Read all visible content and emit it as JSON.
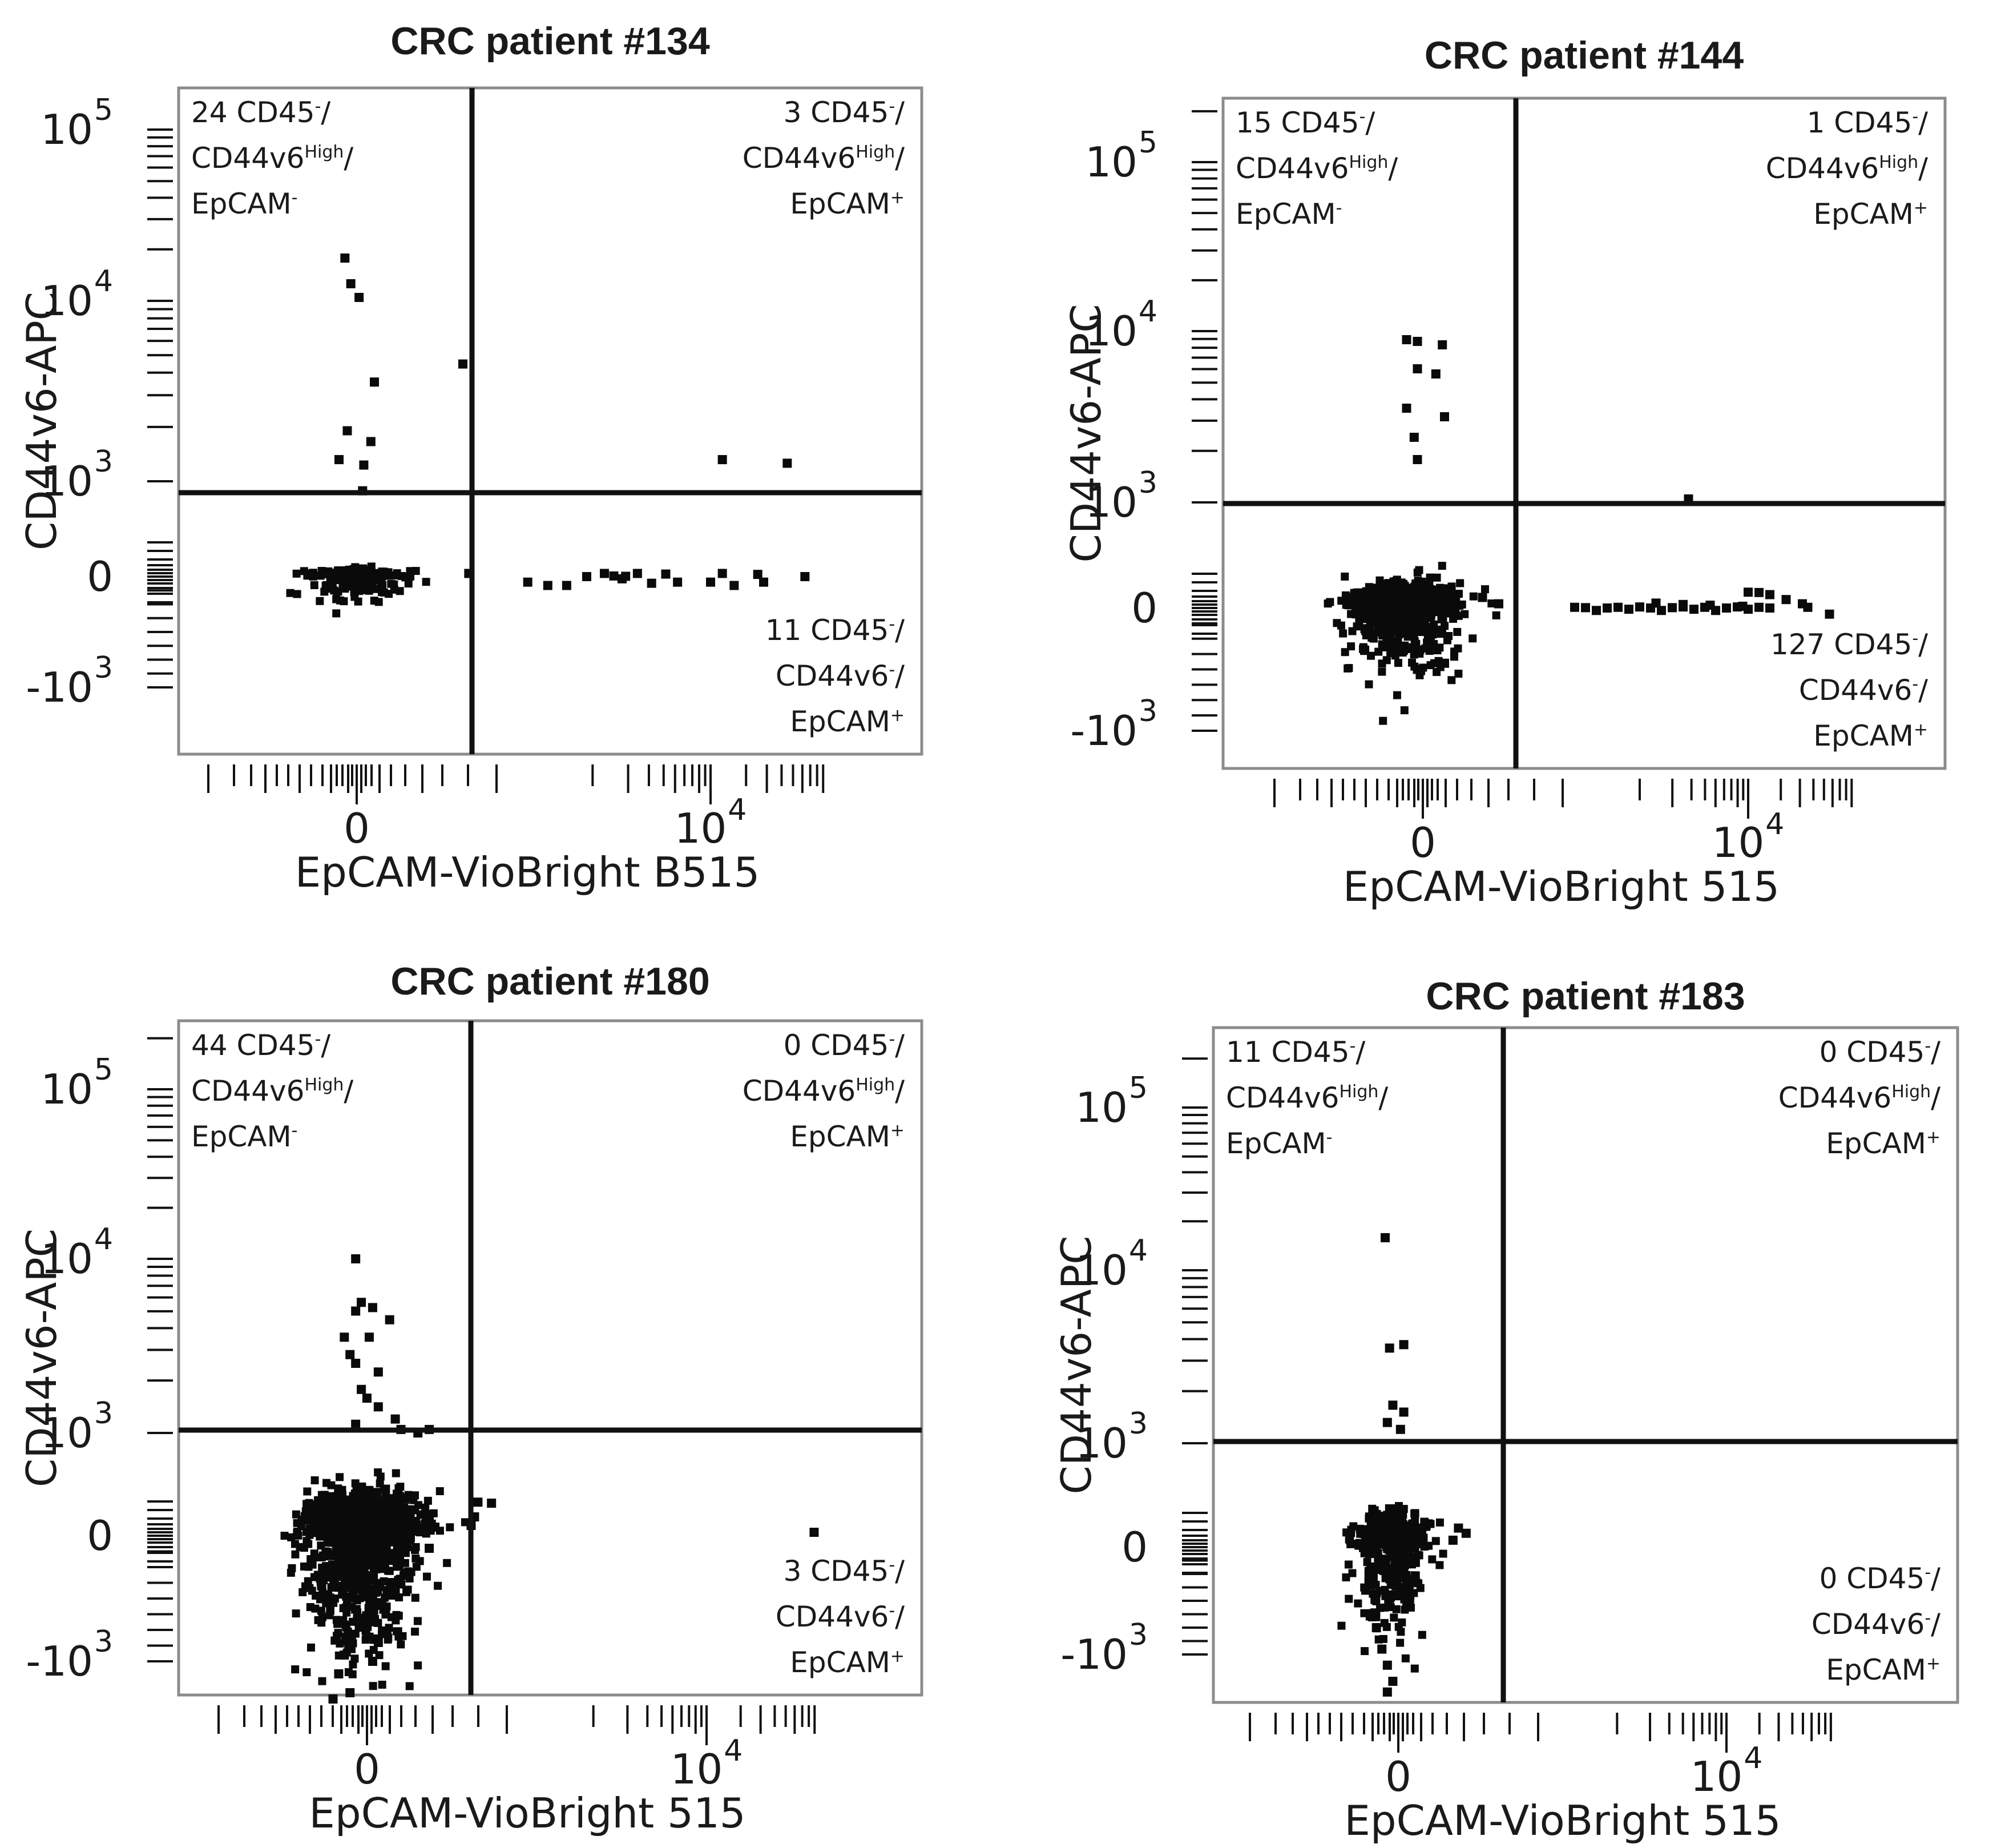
{
  "colors": {
    "dots": "#0a0a0a",
    "frame": "#8c8c8c",
    "gate": "#111111",
    "text": "#1a1a1a"
  },
  "chart_data": [
    {
      "type": "scatter",
      "title": "CRC patient #134",
      "xlabel": "EpCAM-VioBright B515",
      "ylabel": "CD44v6-APC",
      "xscale": "biexponential",
      "yscale": "biexponential",
      "x_tick_labels": [
        {
          "base": "0",
          "exp": ""
        },
        {
          "base": "10",
          "exp": "4"
        }
      ],
      "y_tick_labels": [
        {
          "base": "10",
          "exp": "5"
        },
        {
          "base": "10",
          "exp": "4"
        },
        {
          "base": "10",
          "exp": "3"
        },
        {
          "base": "0",
          "exp": ""
        },
        {
          "base": "-10",
          "exp": "3"
        }
      ],
      "quadrants": {
        "upper_left": {
          "count": "24",
          "lines": [
            [
              "CD45",
              "-",
              "/"
            ],
            [
              "CD44v6",
              "High",
              "/"
            ],
            [
              "EpCAM",
              "-",
              ""
            ]
          ]
        },
        "upper_right": {
          "count": "3",
          "lines": [
            [
              "CD45",
              "-",
              "/"
            ],
            [
              "CD44v6",
              "High",
              "/"
            ],
            [
              "EpCAM",
              "+",
              ""
            ]
          ]
        },
        "lower_right": {
          "count": "11",
          "lines": [
            [
              "CD45",
              "-",
              "/"
            ],
            [
              "CD44v6",
              "-",
              "/"
            ],
            [
              "EpCAM",
              "+",
              ""
            ]
          ]
        }
      },
      "points": [
        [
          -0.1,
          4.25
        ],
        [
          -0.05,
          4.1
        ],
        [
          0.02,
          4.02
        ],
        [
          0.15,
          3.55
        ],
        [
          -0.08,
          3.28
        ],
        [
          0.12,
          3.22
        ],
        [
          -0.15,
          3.12
        ],
        [
          0.06,
          3.09
        ],
        [
          0.05,
          2.7
        ],
        [
          0.9,
          3.65
        ],
        [
          3.1,
          3.12
        ],
        [
          3.65,
          3.1
        ],
        [
          0.95,
          0.1
        ],
        [
          1.45,
          -0.05
        ],
        [
          1.62,
          -0.08
        ],
        [
          1.78,
          -0.08
        ],
        [
          1.95,
          0.0
        ],
        [
          2.1,
          0.1
        ],
        [
          2.18,
          0.02
        ],
        [
          2.25,
          -0.02
        ],
        [
          2.28,
          0.01
        ],
        [
          2.38,
          0.1
        ],
        [
          2.5,
          -0.06
        ],
        [
          2.62,
          0.08
        ],
        [
          2.72,
          -0.05
        ],
        [
          3.0,
          -0.05
        ],
        [
          3.1,
          0.1
        ],
        [
          3.2,
          -0.08
        ],
        [
          3.4,
          0.07
        ],
        [
          3.45,
          -0.05
        ],
        [
          3.8,
          0.0
        ],
        [
          -0.06,
          0.2
        ],
        [
          0.05,
          0.24
        ],
        [
          -0.15,
          0.18
        ]
      ],
      "cluster": {
        "cx": 0.0,
        "cy": 0.0,
        "sx": 0.2,
        "sy": 0.09,
        "n": 190
      }
    },
    {
      "type": "scatter",
      "title": "CRC patient #144",
      "xlabel": "EpCAM-VioBright 515",
      "ylabel": "CD44v6-APC",
      "xscale": "biexponential",
      "yscale": "biexponential",
      "x_tick_labels": [
        {
          "base": "0",
          "exp": ""
        },
        {
          "base": "10",
          "exp": "4"
        }
      ],
      "y_tick_labels": [
        {
          "base": "10",
          "exp": "5"
        },
        {
          "base": "10",
          "exp": "4"
        },
        {
          "base": "10",
          "exp": "3"
        },
        {
          "base": "0",
          "exp": ""
        },
        {
          "base": "-10",
          "exp": "3"
        }
      ],
      "quadrants": {
        "upper_left": {
          "count": "15",
          "lines": [
            [
              "CD45",
              "-",
              "/"
            ],
            [
              "CD44v6",
              "High",
              "/"
            ],
            [
              "EpCAM",
              "-",
              ""
            ]
          ]
        },
        "upper_right": {
          "count": "1",
          "lines": [
            [
              "CD45",
              "-",
              "/"
            ],
            [
              "CD44v6",
              "High",
              "/"
            ],
            [
              "EpCAM",
              "+",
              ""
            ]
          ]
        },
        "lower_right": {
          "count": "127",
          "lines": [
            [
              "CD45",
              "-",
              "/"
            ],
            [
              "CD44v6",
              "-",
              "/"
            ],
            [
              "EpCAM",
              "+",
              ""
            ]
          ]
        }
      },
      "points": [
        [
          -0.15,
          3.95
        ],
        [
          -0.05,
          3.94
        ],
        [
          0.18,
          3.92
        ],
        [
          -0.05,
          3.78
        ],
        [
          0.12,
          3.75
        ],
        [
          -0.15,
          3.55
        ],
        [
          0.2,
          3.5
        ],
        [
          -0.08,
          3.38
        ],
        [
          -0.05,
          3.25
        ],
        [
          2.45,
          3.02
        ],
        [
          1.4,
          0.02
        ],
        [
          1.5,
          0.01
        ],
        [
          1.6,
          -0.02
        ],
        [
          1.7,
          0.0
        ],
        [
          1.8,
          0.02
        ],
        [
          1.9,
          -0.01
        ],
        [
          2.0,
          0.03
        ],
        [
          2.1,
          0.0
        ],
        [
          2.2,
          -0.02
        ],
        [
          2.3,
          0.01
        ],
        [
          2.4,
          0.03
        ],
        [
          2.5,
          -0.01
        ],
        [
          2.6,
          0.02
        ],
        [
          2.7,
          -0.02
        ],
        [
          2.8,
          0.0
        ],
        [
          2.9,
          0.03
        ],
        [
          3.0,
          -0.01
        ],
        [
          3.1,
          0.02
        ],
        [
          3.2,
          0.0
        ],
        [
          2.15,
          0.14
        ],
        [
          2.4,
          0.1
        ],
        [
          2.65,
          0.08
        ],
        [
          2.95,
          0.05
        ],
        [
          3.0,
          0.45
        ],
        [
          3.1,
          0.44
        ],
        [
          3.2,
          0.38
        ],
        [
          3.35,
          0.24
        ],
        [
          3.5,
          0.12
        ],
        [
          3.55,
          0.02
        ],
        [
          3.75,
          -0.05
        ],
        [
          0.2,
          -0.45
        ],
        [
          -0.05,
          -0.5
        ],
        [
          0.55,
          0.3
        ],
        [
          0.7,
          0.12
        ]
      ],
      "cluster": {
        "cx": -0.15,
        "cy": 0.12,
        "sx": 0.24,
        "sy": 0.26,
        "n": 700
      }
    },
    {
      "type": "scatter",
      "title": "CRC patient #180",
      "xlabel": "EpCAM-VioBright 515",
      "ylabel": "CD44v6-APC",
      "xscale": "biexponential",
      "yscale": "biexponential",
      "x_tick_labels": [
        {
          "base": "0",
          "exp": ""
        },
        {
          "base": "10",
          "exp": "4"
        }
      ],
      "y_tick_labels": [
        {
          "base": "10",
          "exp": "5"
        },
        {
          "base": "10",
          "exp": "4"
        },
        {
          "base": "10",
          "exp": "3"
        },
        {
          "base": "0",
          "exp": ""
        },
        {
          "base": "-10",
          "exp": "3"
        }
      ],
      "quadrants": {
        "upper_left": {
          "count": "44",
          "lines": [
            [
              "CD45",
              "-",
              "/"
            ],
            [
              "CD44v6",
              "High",
              "/"
            ],
            [
              "EpCAM",
              "-",
              ""
            ]
          ]
        },
        "upper_right": {
          "count": "0",
          "lines": [
            [
              "CD45",
              "-",
              "/"
            ],
            [
              "CD44v6",
              "High",
              "/"
            ],
            [
              "EpCAM",
              "+",
              ""
            ]
          ]
        },
        "lower_right": {
          "count": "3",
          "lines": [
            [
              "CD45",
              "-",
              "/"
            ],
            [
              "CD44v6",
              "-",
              "/"
            ],
            [
              "EpCAM",
              "+",
              ""
            ]
          ]
        }
      },
      "points": [
        [
          -0.1,
          4.0
        ],
        [
          -0.05,
          3.75
        ],
        [
          -0.1,
          3.7
        ],
        [
          0.05,
          3.72
        ],
        [
          0.2,
          3.65
        ],
        [
          -0.2,
          3.55
        ],
        [
          0.02,
          3.55
        ],
        [
          -0.15,
          3.45
        ],
        [
          -0.1,
          3.4
        ],
        [
          0.1,
          3.35
        ],
        [
          -0.05,
          3.25
        ],
        [
          0.0,
          3.2
        ],
        [
          0.1,
          3.15
        ],
        [
          0.25,
          3.08
        ],
        [
          0.3,
          3.02
        ],
        [
          0.45,
          3.0
        ],
        [
          -0.1,
          3.05
        ],
        [
          0.55,
          3.02
        ],
        [
          0.98,
          0.98
        ],
        [
          0.95,
          0.55
        ],
        [
          0.92,
          0.3
        ],
        [
          1.1,
          0.95
        ],
        [
          3.95,
          0.1
        ],
        [
          -0.25,
          -1.1
        ],
        [
          -0.15,
          -1.25
        ],
        [
          -0.3,
          -1.3
        ],
        [
          0.05,
          -1.0
        ],
        [
          0.1,
          -0.85
        ],
        [
          -0.2,
          -0.95
        ],
        [
          0.55,
          0.5
        ],
        [
          0.6,
          0.25
        ],
        [
          0.55,
          -0.1
        ],
        [
          -0.4,
          -0.4
        ],
        [
          -0.45,
          0.1
        ]
      ],
      "cluster": {
        "cx": -0.05,
        "cy": 0.2,
        "sx": 0.24,
        "sy": 0.45,
        "n": 1400
      }
    },
    {
      "type": "scatter",
      "title": "CRC patient #183",
      "xlabel": "EpCAM-VioBright 515",
      "ylabel": "CD44v6-APC",
      "xscale": "biexponential",
      "yscale": "biexponential",
      "x_tick_labels": [
        {
          "base": "0",
          "exp": ""
        },
        {
          "base": "10",
          "exp": "4"
        }
      ],
      "y_tick_labels": [
        {
          "base": "10",
          "exp": "5"
        },
        {
          "base": "10",
          "exp": "4"
        },
        {
          "base": "10",
          "exp": "3"
        },
        {
          "base": "0",
          "exp": ""
        },
        {
          "base": "-10",
          "exp": "3"
        }
      ],
      "quadrants": {
        "upper_left": {
          "count": "11",
          "lines": [
            [
              "CD45",
              "-",
              "/"
            ],
            [
              "CD44v6",
              "High",
              "/"
            ],
            [
              "EpCAM",
              "-",
              ""
            ]
          ]
        },
        "upper_right": {
          "count": "0",
          "lines": [
            [
              "CD45",
              "-",
              "/"
            ],
            [
              "CD44v6",
              "High",
              "/"
            ],
            [
              "EpCAM",
              "+",
              ""
            ]
          ]
        },
        "lower_right": {
          "count": "0",
          "lines": [
            [
              "CD45",
              "-",
              "/"
            ],
            [
              "CD44v6",
              "-",
              "/"
            ],
            [
              "EpCAM",
              "+",
              ""
            ]
          ]
        }
      },
      "points": [
        [
          -0.12,
          4.2
        ],
        [
          -0.08,
          3.55
        ],
        [
          0.05,
          3.57
        ],
        [
          -0.05,
          3.22
        ],
        [
          0.05,
          3.18
        ],
        [
          -0.1,
          3.12
        ],
        [
          0.02,
          3.08
        ],
        [
          0.25,
          0.6
        ],
        [
          0.55,
          0.55
        ],
        [
          0.62,
          0.4
        ],
        [
          0.5,
          0.2
        ],
        [
          -0.2,
          -0.75
        ],
        [
          -0.15,
          -0.95
        ],
        [
          -0.1,
          -1.1
        ],
        [
          -0.05,
          -1.25
        ],
        [
          -0.1,
          -1.35
        ]
      ],
      "cluster": {
        "cx": -0.05,
        "cy": 0.15,
        "sx": 0.16,
        "sy": 0.35,
        "n": 480
      }
    }
  ]
}
